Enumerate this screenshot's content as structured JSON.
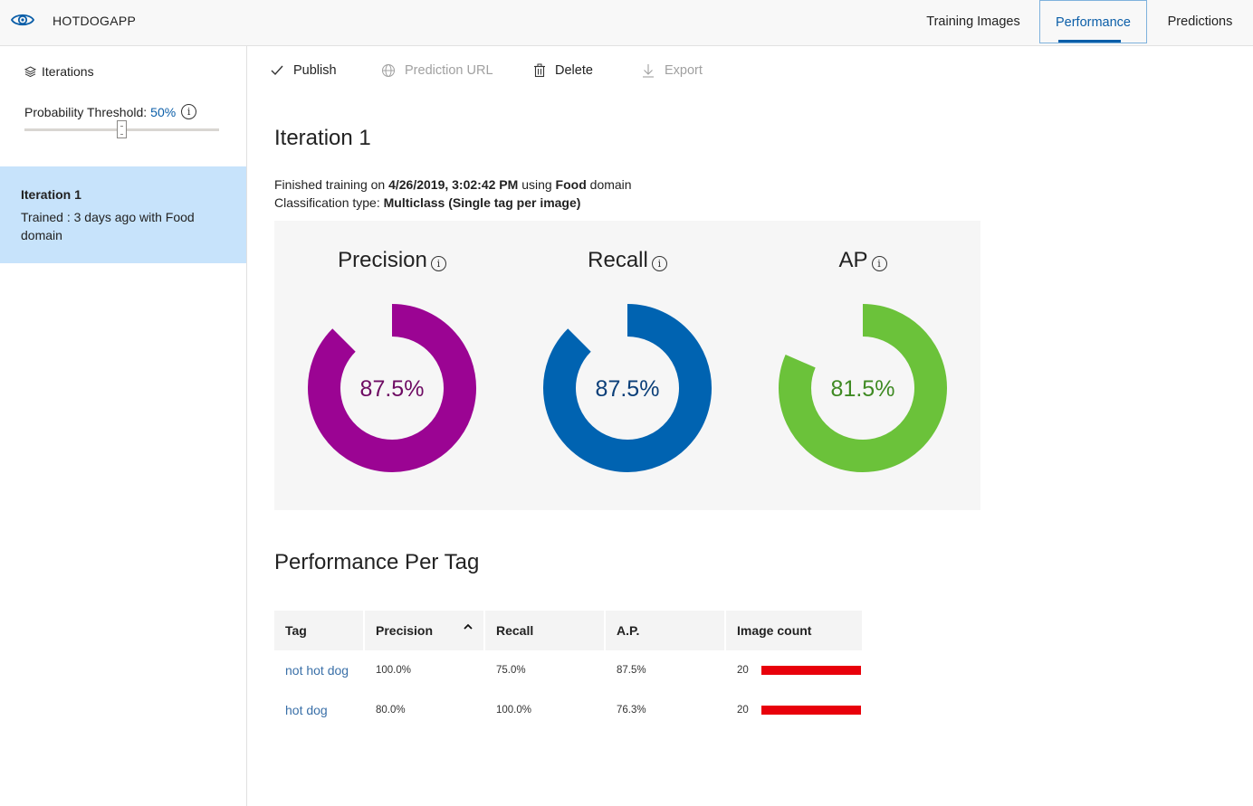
{
  "app": {
    "name": "HOTDOGAPP",
    "icon": "eye-icon"
  },
  "nav": {
    "tabs": [
      {
        "label": "Training Images"
      },
      {
        "label": "Performance",
        "active": true
      },
      {
        "label": "Predictions"
      }
    ]
  },
  "sidebar": {
    "iterations_label": "Iterations",
    "threshold_label": "Probability Threshold:",
    "threshold_value": "50%",
    "threshold_fraction": 0.5,
    "iteration": {
      "title": "Iteration 1",
      "subtitle": "Trained : 3 days ago with Food domain"
    }
  },
  "toolbar": {
    "publish": "Publish",
    "prediction_url": "Prediction URL",
    "delete": "Delete",
    "export": "Export"
  },
  "main": {
    "title": "Iteration 1",
    "finished_prefix": "Finished training on",
    "finished_date": "4/26/2019, 3:02:42 PM",
    "finished_using": "using",
    "domain": "Food",
    "domain_suffix": "domain",
    "classification_prefix": "Classification type:",
    "classification_value": "Multiclass (Single tag per image)"
  },
  "metrics": [
    {
      "name": "Precision",
      "value_text": "87.5%",
      "value": 0.875,
      "color": "#9b0493",
      "text_color": "#6e0b63"
    },
    {
      "name": "Recall",
      "value_text": "87.5%",
      "value": 0.875,
      "color": "#0063b1",
      "text_color": "#0b3f79"
    },
    {
      "name": "AP",
      "value_text": "81.5%",
      "value": 0.815,
      "color": "#6bc23a",
      "text_color": "#3f8a23"
    }
  ],
  "per_tag": {
    "title": "Performance Per Tag",
    "headers": {
      "tag": "Tag",
      "precision": "Precision",
      "recall": "Recall",
      "ap": "A.P.",
      "count": "Image count"
    },
    "rows": [
      {
        "tag": "not hot dog",
        "precision": "100.0%",
        "recall": "75.0%",
        "ap": "87.5%",
        "count": "20"
      },
      {
        "tag": "hot dog",
        "precision": "80.0%",
        "recall": "100.0%",
        "ap": "76.3%",
        "count": "20"
      }
    ],
    "bar_color": "#e8000b"
  }
}
